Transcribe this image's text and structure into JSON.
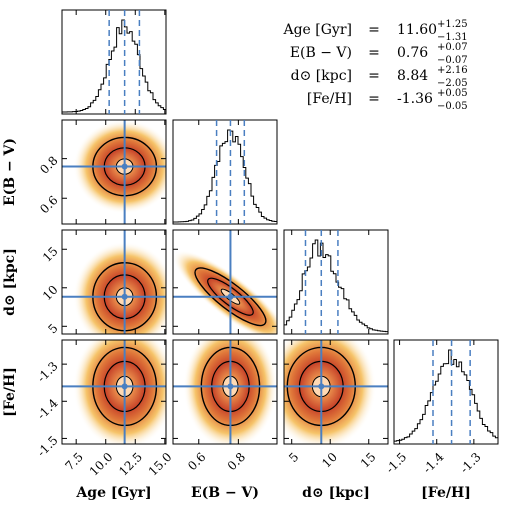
{
  "chart_data": {
    "type": "corner",
    "parameters": [
      {
        "key": "age",
        "label": "Age [Gyr]",
        "median": 11.6,
        "plus": 1.25,
        "minus": 1.31,
        "sigma": 1.28,
        "range": [
          6.3,
          15.1
        ],
        "ticks": [
          7.5,
          10.0,
          12.5,
          15.0
        ],
        "tick_labels": [
          "7.5",
          "10.0",
          "12.5",
          "15.0"
        ],
        "ylabel": ""
      },
      {
        "key": "ebv",
        "label": "E(B − V)",
        "median": 0.76,
        "plus": 0.07,
        "minus": 0.07,
        "sigma": 0.07,
        "range": [
          0.47,
          0.995
        ],
        "ticks": [
          0.6,
          0.8
        ],
        "tick_labels": [
          "0.6",
          "0.8"
        ],
        "ylabel": "E(B − V)"
      },
      {
        "key": "dist",
        "label": "d⊙ [kpc]",
        "median": 8.84,
        "plus": 2.16,
        "minus": 2.05,
        "sigma": 2.1,
        "range": [
          4.0,
          17.5
        ],
        "ticks": [
          5,
          10,
          15
        ],
        "tick_labels": [
          "5",
          "10",
          "15"
        ],
        "ylabel": "d⊙ [kpc]"
      },
      {
        "key": "feh",
        "label": "[Fe/H]",
        "median": -1.36,
        "plus": 0.05,
        "minus": 0.05,
        "sigma": 0.05,
        "range": [
          -1.515,
          -1.235
        ],
        "ticks": [
          -1.5,
          -1.4,
          -1.3
        ],
        "tick_labels": [
          "-1.5",
          "-1.4",
          "-1.3"
        ],
        "ylabel": "[Fe/H]"
      }
    ],
    "correlations": {
      "ebv-dist": -0.85,
      "age-ebv": 0.0,
      "age-dist": 0.0,
      "age-feh": 0.0,
      "ebv-feh": 0.0,
      "dist-feh": 0.0
    },
    "summary": [
      {
        "name": "Age [Gyr]",
        "value": "11.60",
        "plus": "+1.25",
        "minus": "−1.31"
      },
      {
        "name": "E(B − V)",
        "value": "0.76",
        "plus": "+0.07",
        "minus": "−0.07"
      },
      {
        "name": "d⊙ [kpc]",
        "value": "8.84",
        "plus": "+2.16",
        "minus": "−2.05"
      },
      {
        "name": "[Fe/H]",
        "value": "-1.36",
        "plus": "+0.05",
        "minus": "−0.05"
      }
    ],
    "colors": {
      "truth_line": "#4a7fc1",
      "quantile_line": "#4a7fc1",
      "hist": "#000000",
      "density_low": "#fff6c8",
      "density_high": "#b3261e",
      "contour": "#000000",
      "contour_inner": "#ffd9b3"
    },
    "grid": false
  }
}
